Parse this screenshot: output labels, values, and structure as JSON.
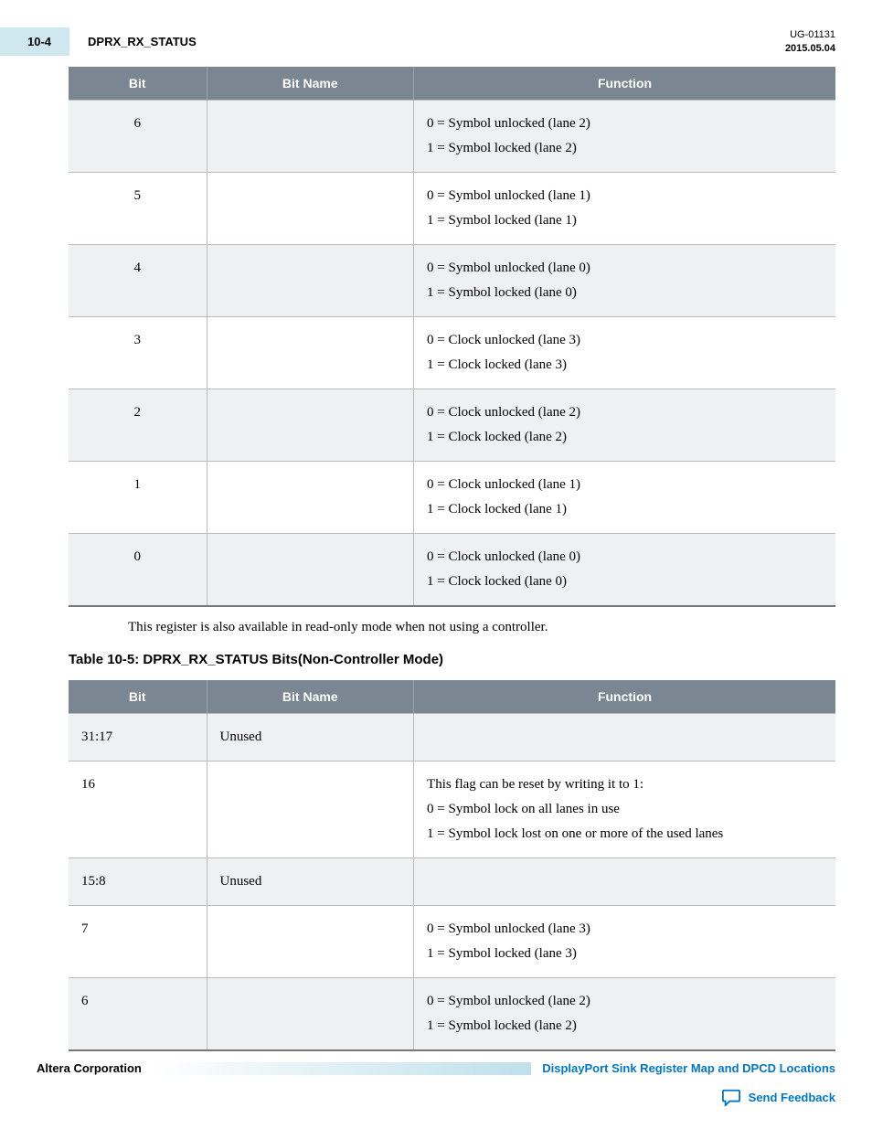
{
  "header": {
    "page_number": "10-4",
    "section_title": "DPRX_RX_STATUS",
    "doc_id": "UG-01131",
    "date": "2015.05.04"
  },
  "table1": {
    "columns": [
      "Bit",
      "Bit Name",
      "Function"
    ],
    "rows": [
      {
        "bit": "6",
        "name": "",
        "func": "0 = Symbol unlocked (lane 2)\n1 = Symbol locked (lane 2)"
      },
      {
        "bit": "5",
        "name": "",
        "func": "0 = Symbol unlocked (lane 1)\n1 = Symbol locked (lane 1)"
      },
      {
        "bit": "4",
        "name": "",
        "func": "0 = Symbol unlocked (lane 0)\n1 = Symbol locked (lane 0)"
      },
      {
        "bit": "3",
        "name": "",
        "func": "0 = Clock unlocked (lane 3)\n1 = Clock locked (lane 3)"
      },
      {
        "bit": "2",
        "name": "",
        "func": "0 = Clock unlocked (lane 2)\n1 = Clock locked (lane 2)"
      },
      {
        "bit": "1",
        "name": "",
        "func": "0 = Clock unlocked (lane 1)\n1 = Clock locked (lane 1)"
      },
      {
        "bit": "0",
        "name": "",
        "func": "0 = Clock unlocked (lane 0)\n1 = Clock locked (lane 0)"
      }
    ]
  },
  "body_text": "This register is also available in read-only mode when not using a controller.",
  "table2_caption": "Table 10-5: DPRX_RX_STATUS Bits(Non-Controller Mode)",
  "table2": {
    "columns": [
      "Bit",
      "Bit Name",
      "Function"
    ],
    "rows": [
      {
        "bit": "31:17",
        "name": "Unused",
        "func": ""
      },
      {
        "bit": "16",
        "name": "",
        "func": "This flag can be reset by writing it to 1:\n0 = Symbol lock on all lanes in use\n1 = Symbol lock lost on one or more of the used lanes"
      },
      {
        "bit": "15:8",
        "name": "Unused",
        "func": ""
      },
      {
        "bit": "7",
        "name": "",
        "func": "0 = Symbol unlocked (lane 3)\n1 = Symbol locked (lane 3)"
      },
      {
        "bit": "6",
        "name": "",
        "func": "0 = Symbol unlocked (lane 2)\n1 = Symbol locked (lane 2)"
      }
    ]
  },
  "footer": {
    "corp": "Altera Corporation",
    "doc_link": "DisplayPort Sink Register Map and DPCD Locations",
    "feedback": "Send Feedback"
  }
}
